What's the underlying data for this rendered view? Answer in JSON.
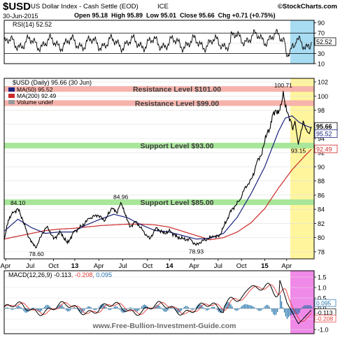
{
  "header": {
    "symbol": "$USD",
    "name": "US Dollar Index - Cash Settle (EOD)",
    "exchange": "ICE",
    "date": "30-Jun-2015",
    "quote": "Open 95.18  High 95.89  Low 95.01  Close 95.66  Chg +0.71 (+0.75%)",
    "logo": "©StockCharts.com"
  },
  "watermark": "www.Free-Bullion-Investment-Guide.com",
  "colors": {
    "price": "#000000",
    "down": "#cc0000",
    "ma50": "#1a237e",
    "ma200": "#cc2a2a",
    "resistance_band": "#f6b3ac",
    "support_band": "#a8e69a",
    "highlight_rsi": "#a8dcf3",
    "highlight_price": "#fff59d",
    "highlight_macd": "#f08ae8",
    "macd_line": "#000000",
    "signal_line": "#e53935",
    "histogram": "#1e6fa8"
  },
  "chart_data": [
    {
      "type": "line",
      "panel": "rsi",
      "title": "RSI(14) 52.52",
      "last_value": 52.52,
      "yticks": [
        10,
        30,
        50,
        70,
        90
      ],
      "ylim": [
        10,
        95
      ],
      "reference_lines": [
        30,
        70
      ],
      "note": "oscillates mostly between 30 and 70"
    },
    {
      "type": "line",
      "panel": "price",
      "title": "$USD (Daily) 95.66 (30 Jun)",
      "x_ticks": [
        "Apr",
        "Jul",
        "Oct",
        "13",
        "Apr",
        "Jul",
        "Oct",
        "14",
        "Apr",
        "Jul",
        "Oct",
        "15",
        "Apr"
      ],
      "yticks": [
        78,
        80,
        82,
        84,
        86,
        88,
        90,
        92,
        94,
        96,
        98,
        100,
        102
      ],
      "ylim": [
        77,
        102.5
      ],
      "series": [
        {
          "name": "$USD",
          "last": 95.66,
          "points": [
            [
              0,
              79.6
            ],
            [
              6,
              82.5
            ],
            [
              13,
              83.5
            ],
            [
              20,
              84.1
            ],
            [
              27,
              82.5
            ],
            [
              34,
              80.5
            ],
            [
              41,
              79.2
            ],
            [
              47,
              78.6
            ],
            [
              55,
              80.5
            ],
            [
              63,
              81.6
            ],
            [
              72,
              79.8
            ],
            [
              82,
              80.8
            ],
            [
              92,
              79.2
            ],
            [
              102,
              80.8
            ],
            [
              113,
              81.6
            ],
            [
              124,
              82.7
            ],
            [
              136,
              83.2
            ],
            [
              147,
              82.4
            ],
            [
              157,
              84.2
            ],
            [
              164,
              83.5
            ],
            [
              170,
              84.96
            ],
            [
              176,
              83.5
            ],
            [
              183,
              81.5
            ],
            [
              192,
              82.3
            ],
            [
              202,
              81.0
            ],
            [
              212,
              79.8
            ],
            [
              222,
              81.4
            ],
            [
              232,
              80.6
            ],
            [
              242,
              80.9
            ],
            [
              252,
              80.1
            ],
            [
              262,
              79.8
            ],
            [
              272,
              79.7
            ],
            [
              280,
              78.93
            ],
            [
              288,
              79.5
            ],
            [
              297,
              79.8
            ],
            [
              305,
              80.2
            ],
            [
              313,
              80.1
            ],
            [
              320,
              81.5
            ],
            [
              326,
              82.8
            ],
            [
              332,
              84.0
            ],
            [
              338,
              84.6
            ],
            [
              344,
              85.4
            ],
            [
              350,
              86.8
            ],
            [
              356,
              87.6
            ],
            [
              362,
              88.5
            ],
            [
              368,
              90.5
            ],
            [
              374,
              91.5
            ],
            [
              380,
              93.5
            ],
            [
              384,
              95.0
            ],
            [
              388,
              95.5
            ],
            [
              392,
              97.5
            ],
            [
              396,
              98.0
            ],
            [
              400,
              97.5
            ],
            [
              404,
              98.8
            ],
            [
              407,
              100.71
            ],
            [
              410,
              98.5
            ],
            [
              414,
              97.5
            ],
            [
              418,
              96.5
            ],
            [
              421,
              95.2
            ],
            [
              424,
              96.5
            ],
            [
              427,
              94.5
            ],
            [
              429,
              93.15
            ],
            [
              432,
              94.5
            ],
            [
              436,
              96.5
            ],
            [
              440,
              95.3
            ],
            [
              444,
              94.8
            ],
            [
              448,
              95.66
            ]
          ]
        },
        {
          "name": "MA(50)",
          "last": 95.52,
          "points": [
            [
              0,
              80.9
            ],
            [
              20,
              82.6
            ],
            [
              40,
              81.4
            ],
            [
              60,
              80.6
            ],
            [
              80,
              80.8
            ],
            [
              100,
              80.8
            ],
            [
              120,
              81.8
            ],
            [
              140,
              82.6
            ],
            [
              160,
              83.3
            ],
            [
              180,
              82.8
            ],
            [
              200,
              81.8
            ],
            [
              220,
              81.0
            ],
            [
              240,
              80.8
            ],
            [
              260,
              80.3
            ],
            [
              280,
              79.8
            ],
            [
              300,
              79.9
            ],
            [
              320,
              80.6
            ],
            [
              340,
              82.9
            ],
            [
              360,
              86.2
            ],
            [
              380,
              90.0
            ],
            [
              400,
              95.0
            ],
            [
              410,
              96.9
            ],
            [
              420,
              97.2
            ],
            [
              430,
              96.3
            ],
            [
              440,
              95.8
            ],
            [
              448,
              95.52
            ]
          ]
        },
        {
          "name": "MA(200)",
          "last": 92.49,
          "points": [
            [
              0,
              79.8
            ],
            [
              20,
              80.2
            ],
            [
              40,
              80.6
            ],
            [
              60,
              81.0
            ],
            [
              80,
              81.2
            ],
            [
              100,
              81.3
            ],
            [
              120,
              81.5
            ],
            [
              140,
              81.7
            ],
            [
              160,
              81.8
            ],
            [
              180,
              81.9
            ],
            [
              200,
              81.9
            ],
            [
              220,
              81.8
            ],
            [
              240,
              81.5
            ],
            [
              260,
              80.9
            ],
            [
              280,
              80.3
            ],
            [
              300,
              79.7
            ],
            [
              320,
              80.0
            ],
            [
              340,
              80.8
            ],
            [
              360,
              82.1
            ],
            [
              380,
              84.1
            ],
            [
              400,
              87.0
            ],
            [
              420,
              89.6
            ],
            [
              440,
              91.7
            ],
            [
              448,
              92.49
            ]
          ]
        }
      ],
      "bands": [
        {
          "label": "Resistance Level $101.00",
          "y1": 100.6,
          "y2": 101.4,
          "kind": "resistance"
        },
        {
          "label": "Resistance Level $99.00",
          "y1": 98.6,
          "y2": 99.4,
          "kind": "resistance"
        },
        {
          "label": "Support Level $93.00",
          "y1": 92.6,
          "y2": 93.4,
          "kind": "support"
        },
        {
          "label": "Support Level $85.00",
          "y1": 84.6,
          "y2": 85.4,
          "kind": "support"
        }
      ],
      "annotations": [
        {
          "text": "84.10",
          "x": 20,
          "y": 84.1
        },
        {
          "text": "78.60",
          "x": 47,
          "y": 78.6
        },
        {
          "text": "84.96",
          "x": 170,
          "y": 84.96
        },
        {
          "text": "78.93",
          "x": 280,
          "y": 78.93
        },
        {
          "text": "100.71",
          "x": 407,
          "y": 100.71
        },
        {
          "text": "93.15",
          "x": 429,
          "y": 93.15
        }
      ],
      "legend": [
        {
          "label": "MA(50) 95.52",
          "color": "#1a237e"
        },
        {
          "label": "MA(200) 92.49",
          "color": "#cc2a2a"
        },
        {
          "label": "Volume undef",
          "color": "#999999"
        }
      ],
      "price_labels": [
        {
          "value": 95.66,
          "text": "95.66"
        },
        {
          "value": 95.52,
          "text": "95.52"
        },
        {
          "value": 92.49,
          "text": "92.49"
        }
      ]
    },
    {
      "type": "line",
      "panel": "macd",
      "title": "MACD(12,26,9) -0.113, -0.208, 0.095",
      "title_parts": [
        "MACD(12,26,9)",
        "-0.113",
        "-0.208",
        "0.095"
      ],
      "yticks": [
        -1.0,
        -0.5,
        0.0,
        0.5,
        1.0,
        1.5
      ],
      "ylim": [
        -1.2,
        1.8
      ],
      "series": [
        {
          "name": "MACD",
          "last": -0.113
        },
        {
          "name": "Signal",
          "last": -0.208
        },
        {
          "name": "Histogram",
          "last": 0.095
        }
      ],
      "price_labels": [
        {
          "value": 0.095,
          "text": "0.095"
        },
        {
          "value": -0.113,
          "text": "-0.113"
        },
        {
          "value": -0.208,
          "text": "-0.208"
        }
      ]
    }
  ]
}
